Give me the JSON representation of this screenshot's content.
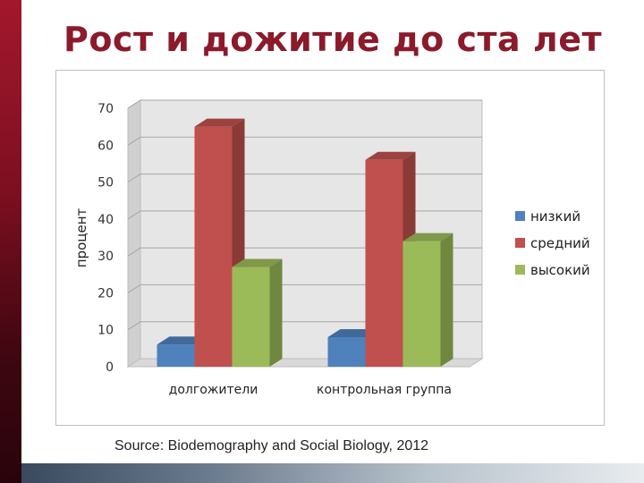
{
  "slide": {
    "title": "Рост и дожитие до ста лет",
    "source": "Source: Biodemography and Social Biology, 2012"
  },
  "chart_data": {
    "type": "bar",
    "style": "3d-clustered-column",
    "categories": [
      "долгожители",
      "контрольная группа"
    ],
    "series": [
      {
        "name": "низкий",
        "values": [
          6,
          8
        ],
        "color": "#4f81bd"
      },
      {
        "name": "средний",
        "values": [
          65,
          56
        ],
        "color": "#c0504d"
      },
      {
        "name": "высокий",
        "values": [
          27,
          34
        ],
        "color": "#9bbb59"
      }
    ],
    "ylabel": "процент",
    "xlabel": "",
    "ylim": [
      0,
      70
    ],
    "yticks": [
      0,
      10,
      20,
      30,
      40,
      50,
      60,
      70
    ],
    "grid": true,
    "legend": "right"
  }
}
